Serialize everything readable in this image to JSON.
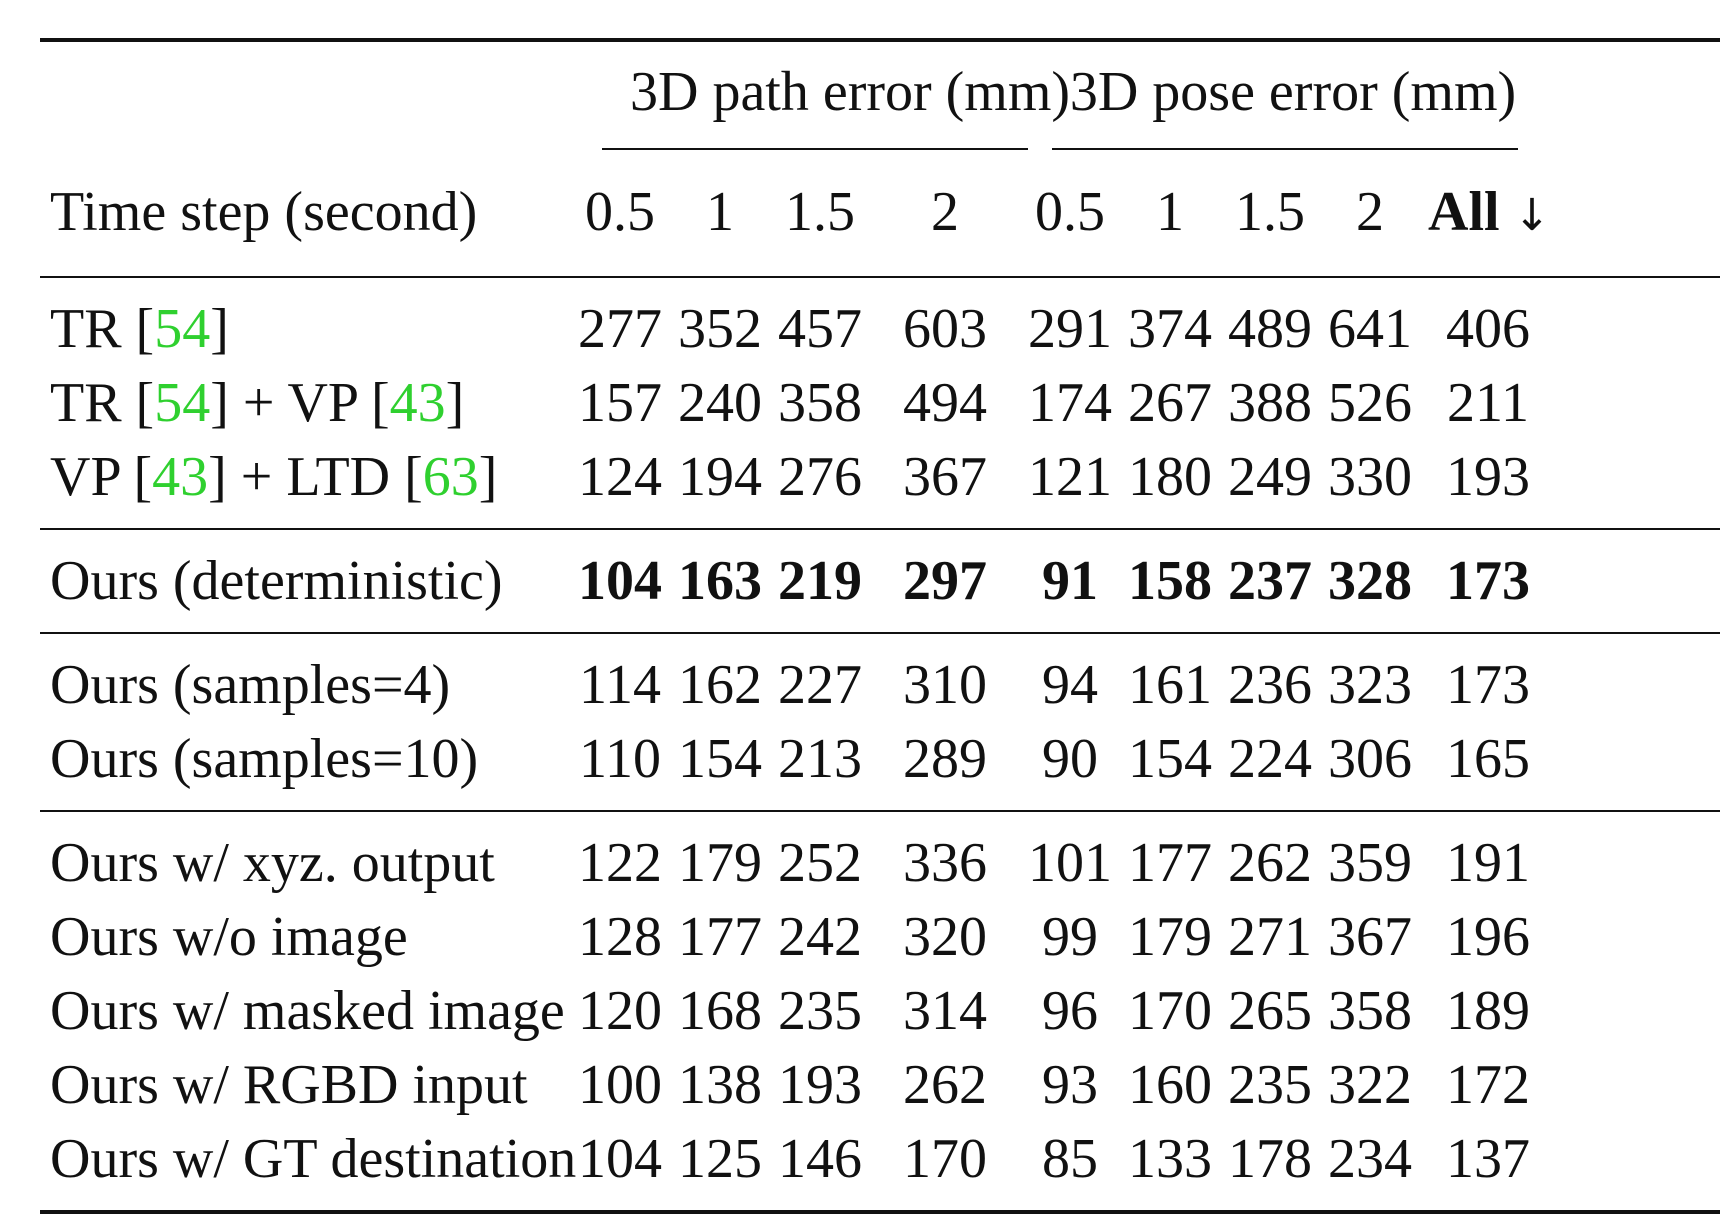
{
  "table": {
    "group_headers": {
      "path": "3D path error (mm)",
      "pose": "3D pose error (mm)"
    },
    "column_headers": {
      "label": "Time step (second)",
      "path": [
        "0.5",
        "1",
        "1.5",
        "2"
      ],
      "pose": [
        "0.5",
        "1",
        "1.5",
        "2"
      ],
      "all": "All",
      "all_arrow": "↓"
    },
    "sections": [
      [
        {
          "label_parts": [
            {
              "t": "TR [",
              "c": false
            },
            {
              "t": "54",
              "c": true
            },
            {
              "t": "]",
              "c": false
            }
          ],
          "values": [
            "277",
            "352",
            "457",
            "603",
            "291",
            "374",
            "489",
            "641",
            "406"
          ],
          "bold": false
        },
        {
          "label_parts": [
            {
              "t": "TR [",
              "c": false
            },
            {
              "t": "54",
              "c": true
            },
            {
              "t": "] + VP [",
              "c": false
            },
            {
              "t": "43",
              "c": true
            },
            {
              "t": "]",
              "c": false
            }
          ],
          "values": [
            "157",
            "240",
            "358",
            "494",
            "174",
            "267",
            "388",
            "526",
            "211"
          ],
          "bold": false
        },
        {
          "label_parts": [
            {
              "t": "VP [",
              "c": false
            },
            {
              "t": "43",
              "c": true
            },
            {
              "t": "] + LTD [",
              "c": false
            },
            {
              "t": "63",
              "c": true
            },
            {
              "t": "]",
              "c": false
            }
          ],
          "values": [
            "124",
            "194",
            "276",
            "367",
            "121",
            "180",
            "249",
            "330",
            "193"
          ],
          "bold": false
        }
      ],
      [
        {
          "label_parts": [
            {
              "t": "Ours (deterministic)",
              "c": false
            }
          ],
          "values": [
            "104",
            "163",
            "219",
            "297",
            "91",
            "158",
            "237",
            "328",
            "173"
          ],
          "bold": true
        }
      ],
      [
        {
          "label_parts": [
            {
              "t": "Ours (samples=4)",
              "c": false
            }
          ],
          "values": [
            "114",
            "162",
            "227",
            "310",
            "94",
            "161",
            "236",
            "323",
            "173"
          ],
          "bold": false
        },
        {
          "label_parts": [
            {
              "t": "Ours (samples=10)",
              "c": false
            }
          ],
          "values": [
            "110",
            "154",
            "213",
            "289",
            "90",
            "154",
            "224",
            "306",
            "165"
          ],
          "bold": false
        }
      ],
      [
        {
          "label_parts": [
            {
              "t": "Ours w/ xyz. output",
              "c": false
            }
          ],
          "values": [
            "122",
            "179",
            "252",
            "336",
            "101",
            "177",
            "262",
            "359",
            "191"
          ],
          "bold": false
        },
        {
          "label_parts": [
            {
              "t": "Ours w/o image",
              "c": false
            }
          ],
          "values": [
            "128",
            "177",
            "242",
            "320",
            "99",
            "179",
            "271",
            "367",
            "196"
          ],
          "bold": false
        },
        {
          "label_parts": [
            {
              "t": "Ours w/ masked image",
              "c": false
            }
          ],
          "values": [
            "120",
            "168",
            "235",
            "314",
            "96",
            "170",
            "265",
            "358",
            "189"
          ],
          "bold": false
        },
        {
          "label_parts": [
            {
              "t": "Ours w/ RGBD input",
              "c": false
            }
          ],
          "values": [
            "100",
            "138",
            "193",
            "262",
            "93",
            "160",
            "235",
            "322",
            "172"
          ],
          "bold": false
        },
        {
          "label_parts": [
            {
              "t": "Ours w/ GT destination",
              "c": false
            }
          ],
          "values": [
            "104",
            "125",
            "146",
            "170",
            "85",
            "133",
            "178",
            "234",
            "137"
          ],
          "bold": false
        }
      ]
    ],
    "colors": {
      "citation": "#2fd02f",
      "text": "#111111"
    }
  }
}
